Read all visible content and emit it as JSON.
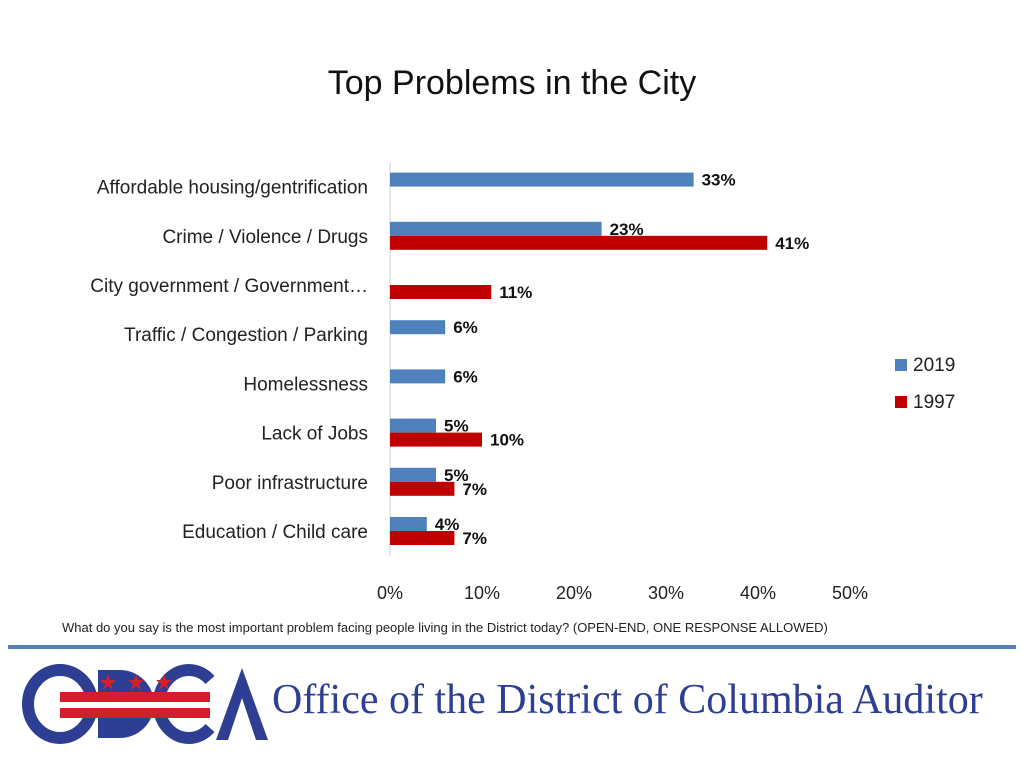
{
  "chart_data": {
    "type": "bar",
    "orientation": "horizontal",
    "title": "Top Problems in the City",
    "categories": [
      "Affordable housing/gentrification",
      "Crime / Violence / Drugs",
      "City government / Government…",
      "Traffic / Congestion / Parking",
      "Homelessness",
      "Lack of Jobs",
      "Poor infrastructure",
      "Education / Child care"
    ],
    "series": [
      {
        "name": "2019",
        "color": "#4f81bd",
        "values": [
          33,
          23,
          null,
          6,
          6,
          5,
          5,
          4
        ]
      },
      {
        "name": "1997",
        "color": "#c00000",
        "values": [
          null,
          41,
          11,
          null,
          null,
          10,
          7,
          7
        ]
      }
    ],
    "value_suffix": "%",
    "xlim": [
      0,
      50
    ],
    "xticks": [
      "0%",
      "10%",
      "20%",
      "30%",
      "40%",
      "50%"
    ],
    "grid": false,
    "legend_position": "right"
  },
  "footnote": "What do you say is the most important problem facing people living in the District today? (OPEN-END, ONE RESPONSE ALLOWED)",
  "branding": {
    "logo_text": "ODCA",
    "org_name": "Office of the District of Columbia Auditor",
    "logo_colors": {
      "blue": "#2e3f93",
      "red": "#d21f2e"
    }
  }
}
